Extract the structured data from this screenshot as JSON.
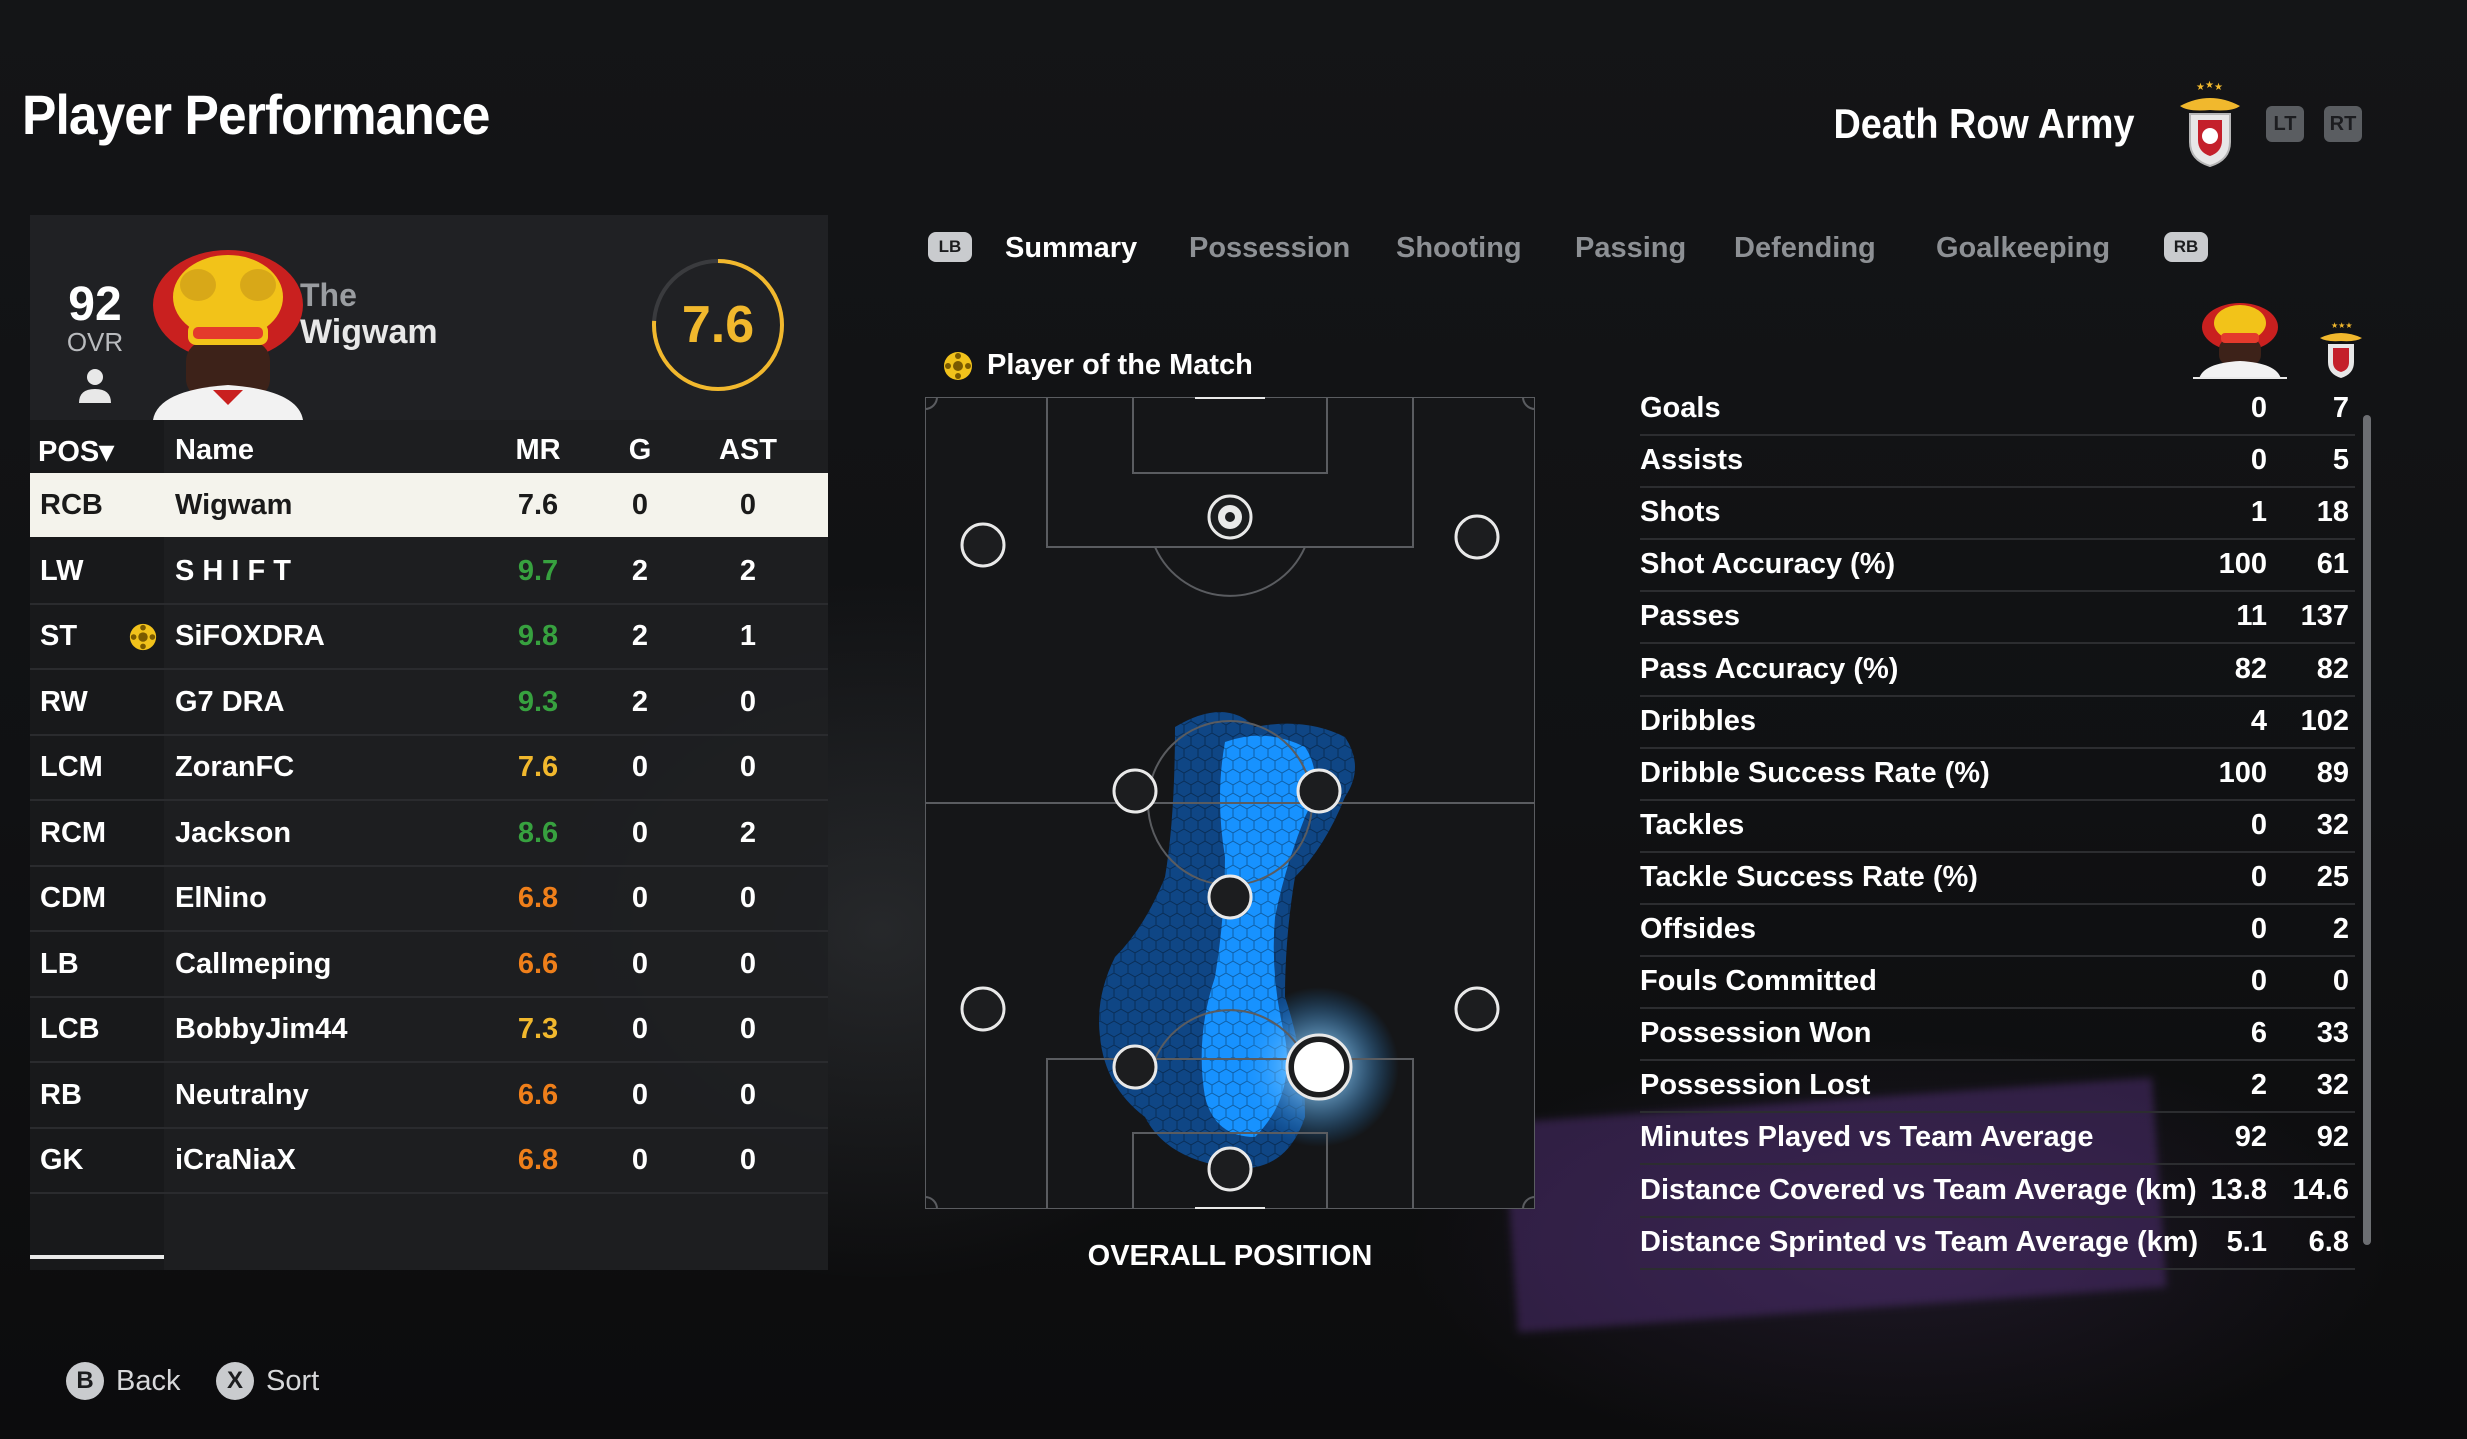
{
  "page": {
    "title": "Player Performance",
    "team_name": "Death Row Army",
    "trigger_lt": "LT",
    "trigger_rt": "RT"
  },
  "player": {
    "ovr": "92",
    "ovr_label": "OVR",
    "name_line1": "The",
    "name_line2": "Wigwam",
    "rating": "7.6",
    "rating_fraction": 0.76
  },
  "table": {
    "headers": {
      "pos": "POS▾",
      "name": "Name",
      "mr": "MR",
      "g": "G",
      "ast": "AST"
    },
    "rows": [
      {
        "pos": "RCB",
        "name": "Wigwam",
        "mr": "7.6",
        "g": "0",
        "ast": "0",
        "mr_color": "#1a1a1a",
        "motm": false
      },
      {
        "pos": "LW",
        "name": "S H I F T",
        "mr": "9.7",
        "g": "2",
        "ast": "2",
        "mr_color": "#37a13f",
        "motm": false
      },
      {
        "pos": "ST",
        "name": "SiFOXDRA",
        "mr": "9.8",
        "g": "2",
        "ast": "1",
        "mr_color": "#37a13f",
        "motm": true
      },
      {
        "pos": "RW",
        "name": "G7 DRA",
        "mr": "9.3",
        "g": "2",
        "ast": "0",
        "mr_color": "#37a13f",
        "motm": false
      },
      {
        "pos": "LCM",
        "name": "ZoranFC",
        "mr": "7.6",
        "g": "0",
        "ast": "0",
        "mr_color": "#f1b82d",
        "motm": false
      },
      {
        "pos": "RCM",
        "name": "Jackson",
        "mr": "8.6",
        "g": "0",
        "ast": "2",
        "mr_color": "#37a13f",
        "motm": false
      },
      {
        "pos": "CDM",
        "name": "ElNino",
        "mr": "6.8",
        "g": "0",
        "ast": "0",
        "mr_color": "#ef7f1a",
        "motm": false
      },
      {
        "pos": "LB",
        "name": "Callmeping",
        "mr": "6.6",
        "g": "0",
        "ast": "0",
        "mr_color": "#ef7f1a",
        "motm": false
      },
      {
        "pos": "LCB",
        "name": "BobbyJim44",
        "mr": "7.3",
        "g": "0",
        "ast": "0",
        "mr_color": "#f1b82d",
        "motm": false
      },
      {
        "pos": "RB",
        "name": "Neutralny",
        "mr": "6.6",
        "g": "0",
        "ast": "0",
        "mr_color": "#ef7f1a",
        "motm": false
      },
      {
        "pos": "GK",
        "name": "iCraNiaX",
        "mr": "6.8",
        "g": "0",
        "ast": "0",
        "mr_color": "#ef7f1a",
        "motm": false
      }
    ]
  },
  "tabs": {
    "lb": "LB",
    "rb": "RB",
    "items": [
      "Summary",
      "Possession",
      "Shooting",
      "Passing",
      "Defending",
      "Goalkeeping"
    ],
    "active": "Summary"
  },
  "pitch": {
    "motm_label": "Player of the Match",
    "caption": "OVERALL POSITION"
  },
  "stats": [
    {
      "label": "Goals",
      "player": "0",
      "team": "7"
    },
    {
      "label": "Assists",
      "player": "0",
      "team": "5"
    },
    {
      "label": "Shots",
      "player": "1",
      "team": "18"
    },
    {
      "label": "Shot Accuracy (%)",
      "player": "100",
      "team": "61"
    },
    {
      "label": "Passes",
      "player": "11",
      "team": "137"
    },
    {
      "label": "Pass Accuracy (%)",
      "player": "82",
      "team": "82"
    },
    {
      "label": "Dribbles",
      "player": "4",
      "team": "102"
    },
    {
      "label": "Dribble Success Rate (%)",
      "player": "100",
      "team": "89"
    },
    {
      "label": "Tackles",
      "player": "0",
      "team": "32"
    },
    {
      "label": "Tackle Success Rate (%)",
      "player": "0",
      "team": "25"
    },
    {
      "label": "Offsides",
      "player": "0",
      "team": "2"
    },
    {
      "label": "Fouls Committed",
      "player": "0",
      "team": "0"
    },
    {
      "label": "Possession Won",
      "player": "6",
      "team": "33"
    },
    {
      "label": "Possession Lost",
      "player": "2",
      "team": "32"
    },
    {
      "label": "Minutes Played vs Team Average",
      "player": "92",
      "team": "92"
    },
    {
      "label": "Distance Covered vs Team Average (km)",
      "player": "13.8",
      "team": "14.6"
    },
    {
      "label": "Distance Sprinted vs Team Average (km)",
      "player": "5.1",
      "team": "6.8"
    }
  ],
  "footer": {
    "back_key": "B",
    "back_label": "Back",
    "sort_key": "X",
    "sort_label": "Sort"
  },
  "colors": {
    "accent_gold": "#f1b82d",
    "rating_green": "#37a13f",
    "rating_orange": "#ef7f1a",
    "heatmap_blue": "#1792ff"
  }
}
